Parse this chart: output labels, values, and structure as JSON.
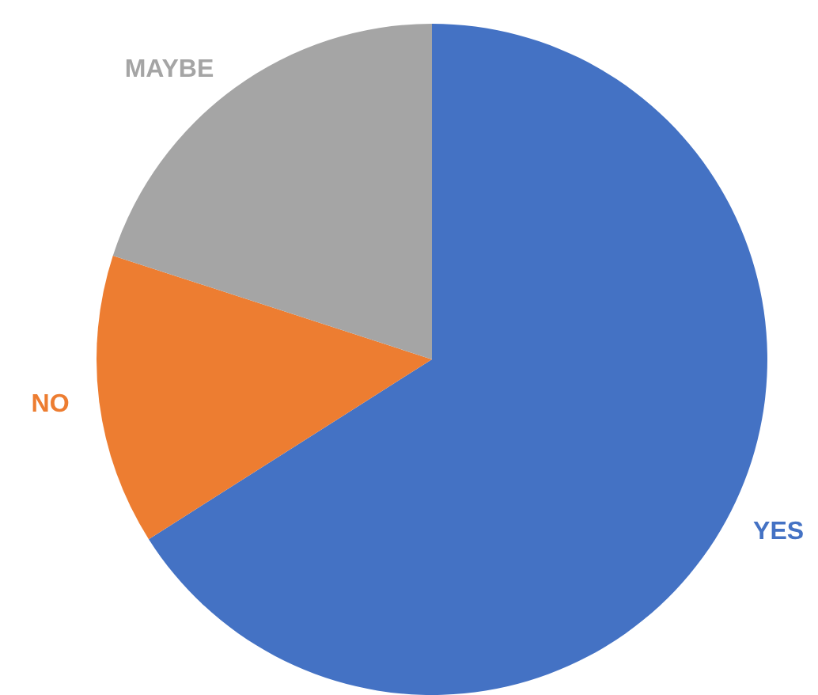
{
  "chart_data": {
    "type": "pie",
    "categories": [
      "YES",
      "NO",
      "MAYBE"
    ],
    "values": [
      66,
      14,
      20
    ],
    "colors": [
      "#4472c4",
      "#ed7d31",
      "#a5a5a5"
    ]
  }
}
